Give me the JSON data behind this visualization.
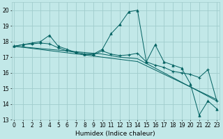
{
  "xlabel": "Humidex (Indice chaleur)",
  "bg_color": "#c2e8e8",
  "grid_color": "#a0cccc",
  "line_color": "#006060",
  "xlim": [
    0,
    23
  ],
  "ylim": [
    13,
    20.5
  ],
  "yticks": [
    13,
    14,
    15,
    16,
    17,
    18,
    19,
    20
  ],
  "xticks": [
    0,
    1,
    2,
    3,
    4,
    5,
    6,
    7,
    8,
    9,
    10,
    11,
    12,
    13,
    14,
    15,
    16,
    17,
    18,
    19,
    20,
    21,
    22,
    23
  ],
  "series1": [
    17.7,
    17.8,
    17.9,
    18.0,
    18.4,
    17.7,
    17.5,
    17.3,
    17.2,
    17.2,
    17.5,
    18.5,
    19.1,
    19.9,
    20.0,
    16.7,
    17.8,
    16.7,
    16.5,
    16.3,
    15.3,
    13.3,
    14.2,
    13.7
  ],
  "series2": [
    17.7,
    17.8,
    17.85,
    17.9,
    17.85,
    17.6,
    17.4,
    17.3,
    17.2,
    17.15,
    17.4,
    17.2,
    17.1,
    17.15,
    17.25,
    16.7,
    16.5,
    16.35,
    16.1,
    16.0,
    15.9,
    15.7,
    16.2,
    14.2
  ],
  "series3": [
    17.7,
    17.65,
    17.6,
    17.55,
    17.5,
    17.45,
    17.4,
    17.35,
    17.3,
    17.25,
    17.2,
    17.1,
    17.0,
    16.95,
    16.9,
    16.6,
    16.3,
    16.0,
    15.7,
    15.4,
    15.1,
    14.8,
    14.5,
    14.2
  ],
  "series4": [
    17.7,
    17.63,
    17.56,
    17.49,
    17.42,
    17.35,
    17.28,
    17.21,
    17.14,
    17.07,
    17.0,
    16.93,
    16.86,
    16.79,
    16.72,
    16.45,
    16.18,
    15.91,
    15.64,
    15.37,
    15.1,
    14.83,
    14.56,
    14.29
  ]
}
